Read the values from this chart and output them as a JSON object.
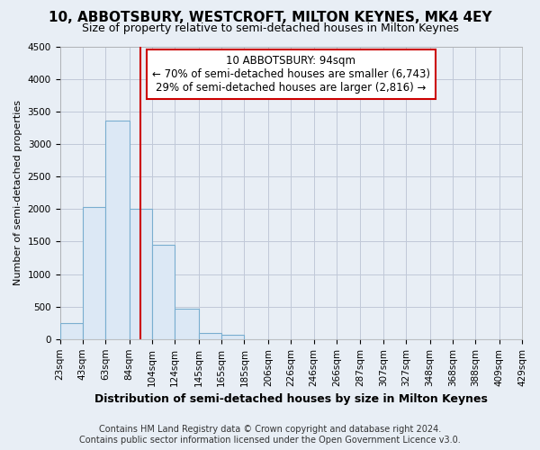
{
  "title": "10, ABBOTSBURY, WESTCROFT, MILTON KEYNES, MK4 4EY",
  "subtitle": "Size of property relative to semi-detached houses in Milton Keynes",
  "xlabel": "Distribution of semi-detached houses by size in Milton Keynes",
  "ylabel": "Number of semi-detached properties",
  "footer_line1": "Contains HM Land Registry data © Crown copyright and database right 2024.",
  "footer_line2": "Contains public sector information licensed under the Open Government Licence v3.0.",
  "property_label": "10 ABBOTSBURY: 94sqm",
  "pct_smaller": 70,
  "count_smaller": "6,743",
  "pct_larger": 29,
  "count_larger": "2,816",
  "bin_edges": [
    23,
    43,
    63,
    84,
    104,
    124,
    145,
    165,
    185,
    206,
    226,
    246,
    266,
    287,
    307,
    327,
    348,
    368,
    388,
    409,
    429
  ],
  "bin_labels": [
    "23sqm",
    "43sqm",
    "63sqm",
    "84sqm",
    "104sqm",
    "124sqm",
    "145sqm",
    "165sqm",
    "185sqm",
    "206sqm",
    "226sqm",
    "246sqm",
    "266sqm",
    "287sqm",
    "307sqm",
    "327sqm",
    "348sqm",
    "368sqm",
    "388sqm",
    "409sqm",
    "429sqm"
  ],
  "bar_heights": [
    250,
    2030,
    3360,
    2010,
    1450,
    470,
    100,
    65,
    0,
    0,
    0,
    0,
    0,
    0,
    0,
    0,
    0,
    0,
    0,
    0
  ],
  "bar_color": "#dce8f5",
  "bar_edge_color": "#7aaed0",
  "vline_color": "#cc0000",
  "vline_x": 94,
  "ylim": [
    0,
    4500
  ],
  "yticks": [
    0,
    500,
    1000,
    1500,
    2000,
    2500,
    3000,
    3500,
    4000,
    4500
  ],
  "annotation_box_color": "#ffffff",
  "annotation_box_edge_color": "#cc0000",
  "background_color": "#e8eef5",
  "plot_bg_color": "#e8eef5",
  "grid_color": "#c0c8d8",
  "title_fontsize": 11,
  "subtitle_fontsize": 9,
  "xlabel_fontsize": 9,
  "ylabel_fontsize": 8,
  "tick_fontsize": 7.5,
  "footer_fontsize": 7,
  "ann_fontsize": 8.5
}
